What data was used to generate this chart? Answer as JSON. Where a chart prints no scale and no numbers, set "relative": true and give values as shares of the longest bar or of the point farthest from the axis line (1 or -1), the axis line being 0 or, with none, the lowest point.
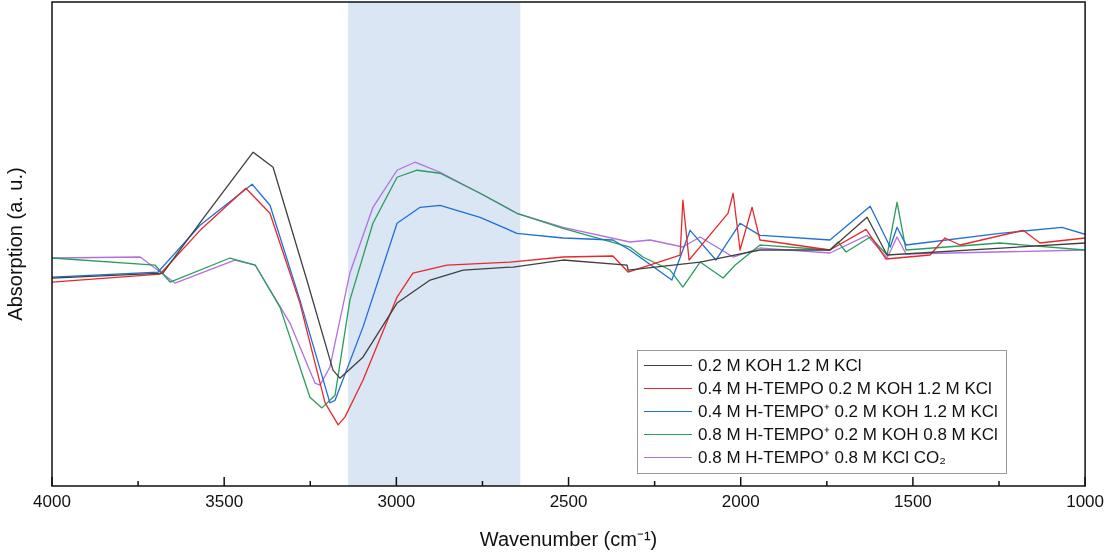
{
  "chart_data": {
    "type": "line",
    "relative": true,
    "xlabel": "Wavenumber (cm⁻¹)",
    "ylabel": "Absorption (a. u.)",
    "xlim": [
      4000,
      1000
    ],
    "xticks": [
      4000,
      {
        "value": 3750,
        "label": null
      },
      3500,
      {
        "value": 3250,
        "label": null
      },
      3000,
      {
        "value": 2750,
        "label": null
      },
      2500,
      {
        "value": 2250,
        "label": null
      },
      2000,
      {
        "value": 1750,
        "label": null
      },
      1500,
      {
        "value": 1250,
        "label": null
      },
      1000
    ],
    "grid": false,
    "legend": "bottom right",
    "bands": [
      {
        "axis": "x",
        "from": 3140,
        "to": 2640,
        "color": "#dae6f4"
      }
    ],
    "series": [
      {
        "name": "0.2 M KOH 1.2 M KCl",
        "color": "#404040",
        "x": [
          4000,
          3678,
          3550,
          3416,
          3358,
          3260,
          3184,
          3164,
          3097,
          2998,
          2902,
          2806,
          2661,
          2516,
          2330,
          2327,
          2118,
          1944,
          1741,
          1633,
          1575,
          1000
        ],
        "values": [
          0.623,
          0.638,
          0.817,
          1.0,
          0.955,
          0.617,
          0.347,
          0.323,
          0.386,
          0.548,
          0.617,
          0.647,
          0.656,
          0.677,
          0.662,
          0.647,
          0.671,
          0.707,
          0.707,
          0.805,
          0.692,
          0.728
        ]
      },
      {
        "name": "0.4 M H-TEMPO 0.2 M KOH 1.2 M KCl",
        "color": "#e8282b",
        "x": [
          4000,
          3686,
          3570,
          3437,
          3367,
          3280,
          3207,
          3169,
          3149,
          3097,
          2998,
          2952,
          2853,
          2670,
          2516,
          2371,
          2327,
          2176,
          2168,
          2150,
          2037,
          2022,
          2002,
          1967,
          1944,
          1741,
          1636,
          1578,
          1450,
          1407,
          1363,
          1180,
          1131,
          1000
        ],
        "values": [
          0.611,
          0.635,
          0.766,
          0.892,
          0.817,
          0.548,
          0.249,
          0.183,
          0.207,
          0.317,
          0.566,
          0.638,
          0.662,
          0.671,
          0.686,
          0.689,
          0.641,
          0.692,
          0.856,
          0.677,
          0.817,
          0.877,
          0.707,
          0.835,
          0.737,
          0.707,
          0.769,
          0.68,
          0.692,
          0.743,
          0.722,
          0.766,
          0.728,
          0.743
        ]
      },
      {
        "name": "0.4 M H-TEMPO⁺ 0.2 M KOH 1.2 M KCl",
        "color": "#1f6fd6",
        "x": [
          4000,
          3692,
          3570,
          3419,
          3367,
          3280,
          3193,
          3178,
          3097,
          2998,
          2931,
          2873,
          2757,
          2650,
          2516,
          2371,
          2322,
          2200,
          2147,
          2072,
          2002,
          1944,
          1741,
          1624,
          1566,
          1546,
          1520,
          1247,
          1067,
          1000
        ],
        "values": [
          0.626,
          0.641,
          0.781,
          0.904,
          0.841,
          0.557,
          0.249,
          0.257,
          0.476,
          0.787,
          0.835,
          0.841,
          0.805,
          0.757,
          0.743,
          0.737,
          0.707,
          0.617,
          0.766,
          0.677,
          0.787,
          0.751,
          0.737,
          0.838,
          0.716,
          0.775,
          0.722,
          0.757,
          0.775,
          0.754
        ]
      },
      {
        "name": "0.8 M H-TEMPO⁺ 0.2 M KOH 0.8 M KCl",
        "color": "#2a9d5c",
        "x": [
          4000,
          3701,
          3657,
          3483,
          3410,
          3338,
          3251,
          3216,
          3178,
          3135,
          3068,
          2998,
          2940,
          2873,
          2757,
          2650,
          2516,
          2322,
          2284,
          2205,
          2168,
          2118,
          2051,
          2016,
          1944,
          1741,
          1717,
          1694,
          1624,
          1575,
          1546,
          1520,
          1247,
          1000
        ],
        "values": [
          0.683,
          0.662,
          0.611,
          0.683,
          0.662,
          0.536,
          0.266,
          0.234,
          0.272,
          0.557,
          0.787,
          0.925,
          0.946,
          0.937,
          0.877,
          0.817,
          0.772,
          0.716,
          0.686,
          0.647,
          0.596,
          0.671,
          0.623,
          0.662,
          0.722,
          0.707,
          0.731,
          0.701,
          0.746,
          0.692,
          0.85,
          0.707,
          0.728,
          0.707
        ]
      },
      {
        "name": "0.8 M H-TEMPO⁺ 0.8 M KCl CO₂",
        "color": "#b070e0",
        "x": [
          4000,
          3744,
          3643,
          3469,
          3410,
          3309,
          3236,
          3222,
          3193,
          3135,
          3068,
          2998,
          2946,
          2873,
          2757,
          2650,
          2516,
          2322,
          2263,
          2168,
          2118,
          2022,
          1944,
          1741,
          1633,
          1575,
          1546,
          1520,
          1000
        ],
        "values": [
          0.683,
          0.686,
          0.608,
          0.677,
          0.662,
          0.488,
          0.308,
          0.302,
          0.356,
          0.638,
          0.835,
          0.946,
          0.97,
          0.94,
          0.877,
          0.817,
          0.775,
          0.731,
          0.737,
          0.716,
          0.746,
          0.686,
          0.713,
          0.698,
          0.751,
          0.683,
          0.746,
          0.695,
          0.707
        ]
      }
    ]
  }
}
